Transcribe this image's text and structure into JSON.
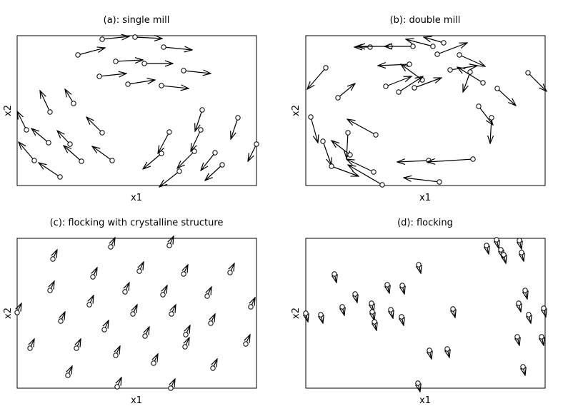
{
  "chart_data": [
    {
      "type": "vector-field",
      "title": "(a): single mill",
      "xlabel": "x1",
      "ylabel": "x2",
      "xlim": [
        0,
        335
      ],
      "ylim": [
        0,
        210
      ],
      "grid": false,
      "points": [
        {
          "x": 85,
          "y": 183,
          "dx": 38,
          "dy": 10
        },
        {
          "x": 119,
          "y": 205,
          "dx": 38,
          "dy": 4
        },
        {
          "x": 165,
          "y": 208,
          "dx": 38,
          "dy": -2
        },
        {
          "x": 205,
          "y": 194,
          "dx": 40,
          "dy": -4
        },
        {
          "x": 138,
          "y": 174,
          "dx": 38,
          "dy": 2
        },
        {
          "x": 178,
          "y": 171,
          "dx": 40,
          "dy": 0
        },
        {
          "x": 115,
          "y": 153,
          "dx": 38,
          "dy": 4
        },
        {
          "x": 233,
          "y": 161,
          "dx": 38,
          "dy": -4
        },
        {
          "x": 155,
          "y": 142,
          "dx": 38,
          "dy": 6
        },
        {
          "x": 202,
          "y": 140,
          "dx": 38,
          "dy": -4
        },
        {
          "x": 46,
          "y": 103,
          "dx": -14,
          "dy": 30
        },
        {
          "x": 79,
          "y": 115,
          "dx": -12,
          "dy": 20
        },
        {
          "x": 119,
          "y": 74,
          "dx": -22,
          "dy": 22
        },
        {
          "x": 13,
          "y": 78,
          "dx": -13,
          "dy": 26
        },
        {
          "x": 44,
          "y": 60,
          "dx": -24,
          "dy": 20
        },
        {
          "x": 74,
          "y": 58,
          "dx": -18,
          "dy": 19
        },
        {
          "x": 24,
          "y": 35,
          "dx": -22,
          "dy": 26
        },
        {
          "x": 90,
          "y": 34,
          "dx": -25,
          "dy": 22
        },
        {
          "x": 60,
          "y": 12,
          "dx": -30,
          "dy": 20
        },
        {
          "x": 133,
          "y": 35,
          "dx": -28,
          "dy": 20
        },
        {
          "x": 259,
          "y": 106,
          "dx": -10,
          "dy": -30
        },
        {
          "x": 309,
          "y": 95,
          "dx": -10,
          "dy": -30
        },
        {
          "x": 257,
          "y": 78,
          "dx": -14,
          "dy": -30
        },
        {
          "x": 213,
          "y": 75,
          "dx": -16,
          "dy": -30
        },
        {
          "x": 277,
          "y": 46,
          "dx": -20,
          "dy": -25
        },
        {
          "x": 248,
          "y": 48,
          "dx": -24,
          "dy": -24
        },
        {
          "x": 202,
          "y": 45,
          "dx": -26,
          "dy": -22
        },
        {
          "x": 335,
          "y": 58,
          "dx": -12,
          "dy": -24
        },
        {
          "x": 287,
          "y": 29,
          "dx": -24,
          "dy": -22
        },
        {
          "x": 227,
          "y": 20,
          "dx": -28,
          "dy": -22
        }
      ]
    },
    {
      "type": "vector-field",
      "title": "(b): double mill",
      "xlabel": "x1",
      "ylabel": "x2",
      "xlim": [
        0,
        335
      ],
      "ylim": [
        0,
        210
      ],
      "grid": false,
      "points": [
        {
          "x": 90,
          "y": 194,
          "dx": -22,
          "dy": 0
        },
        {
          "x": 118,
          "y": 195,
          "dx": -46,
          "dy": 0
        },
        {
          "x": 178,
          "y": 195,
          "dx": -38,
          "dy": 10
        },
        {
          "x": 193,
          "y": 200,
          "dx": -28,
          "dy": 8
        },
        {
          "x": 150,
          "y": 195,
          "dx": -40,
          "dy": 0
        },
        {
          "x": 184,
          "y": 184,
          "dx": 42,
          "dy": 16
        },
        {
          "x": 145,
          "y": 170,
          "dx": -44,
          "dy": -2
        },
        {
          "x": 215,
          "y": 183,
          "dx": 36,
          "dy": -16
        },
        {
          "x": 202,
          "y": 162,
          "dx": 38,
          "dy": 6
        },
        {
          "x": 163,
          "y": 148,
          "dx": -30,
          "dy": 22
        },
        {
          "x": 112,
          "y": 139,
          "dx": 36,
          "dy": 14
        },
        {
          "x": 152,
          "y": 137,
          "dx": 38,
          "dy": 14
        },
        {
          "x": 130,
          "y": 131,
          "dx": 34,
          "dy": 22
        },
        {
          "x": 248,
          "y": 144,
          "dx": -36,
          "dy": 22
        },
        {
          "x": 230,
          "y": 159,
          "dx": -10,
          "dy": -28
        },
        {
          "x": 268,
          "y": 136,
          "dx": 26,
          "dy": -24
        },
        {
          "x": 311,
          "y": 158,
          "dx": 26,
          "dy": -26
        },
        {
          "x": 28,
          "y": 165,
          "dx": -26,
          "dy": -30
        },
        {
          "x": 45,
          "y": 123,
          "dx": 24,
          "dy": 20
        },
        {
          "x": 242,
          "y": 111,
          "dx": 20,
          "dy": -26
        },
        {
          "x": 260,
          "y": 95,
          "dx": -2,
          "dy": -36
        },
        {
          "x": 7,
          "y": 96,
          "dx": 10,
          "dy": -36
        },
        {
          "x": 98,
          "y": 71,
          "dx": -40,
          "dy": 22
        },
        {
          "x": 59,
          "y": 74,
          "dx": -2,
          "dy": -36
        },
        {
          "x": 24,
          "y": 62,
          "dx": 12,
          "dy": -34
        },
        {
          "x": 62,
          "y": 43,
          "dx": -26,
          "dy": 20
        },
        {
          "x": 36,
          "y": 27,
          "dx": 38,
          "dy": -14
        },
        {
          "x": 95,
          "y": 19,
          "dx": -38,
          "dy": 18
        },
        {
          "x": 107,
          "y": 1,
          "dx": -48,
          "dy": 28
        },
        {
          "x": 187,
          "y": 5,
          "dx": -50,
          "dy": 6
        },
        {
          "x": 172,
          "y": 35,
          "dx": -44,
          "dy": -2
        },
        {
          "x": 234,
          "y": 37,
          "dx": -64,
          "dy": -4
        }
      ]
    },
    {
      "type": "vector-field",
      "title": "(c): flocking with crystalline structure",
      "xlabel": "x1",
      "ylabel": "x2",
      "xlim": [
        0,
        335
      ],
      "ylim": [
        0,
        210
      ],
      "grid": false,
      "points": [
        {
          "x": 50,
          "y": 181,
          "dx": 6,
          "dy": 13
        },
        {
          "x": 131,
          "y": 198,
          "dx": 6,
          "dy": 13
        },
        {
          "x": 213,
          "y": 200,
          "dx": 6,
          "dy": 13
        },
        {
          "x": 106,
          "y": 156,
          "dx": 6,
          "dy": 13
        },
        {
          "x": 171,
          "y": 164,
          "dx": 6,
          "dy": 13
        },
        {
          "x": 233,
          "y": 160,
          "dx": 6,
          "dy": 13
        },
        {
          "x": 298,
          "y": 162,
          "dx": 6,
          "dy": 13
        },
        {
          "x": 46,
          "y": 137,
          "dx": 6,
          "dy": 13
        },
        {
          "x": 151,
          "y": 135,
          "dx": 6,
          "dy": 13
        },
        {
          "x": 204,
          "y": 131,
          "dx": 6,
          "dy": 13
        },
        {
          "x": 266,
          "y": 129,
          "dx": 6,
          "dy": 13
        },
        {
          "x": 101,
          "y": 117,
          "dx": 6,
          "dy": 13
        },
        {
          "x": 162,
          "y": 104,
          "dx": 6,
          "dy": 13
        },
        {
          "x": 216,
          "y": 104,
          "dx": 6,
          "dy": 13
        },
        {
          "x": 327,
          "y": 114,
          "dx": 6,
          "dy": 13
        },
        {
          "x": 0,
          "y": 106,
          "dx": 6,
          "dy": 13
        },
        {
          "x": 61,
          "y": 94,
          "dx": 6,
          "dy": 13
        },
        {
          "x": 122,
          "y": 82,
          "dx": 6,
          "dy": 13
        },
        {
          "x": 271,
          "y": 91,
          "dx": 6,
          "dy": 13
        },
        {
          "x": 179,
          "y": 73,
          "dx": 6,
          "dy": 13
        },
        {
          "x": 236,
          "y": 75,
          "dx": 6,
          "dy": 13
        },
        {
          "x": 18,
          "y": 56,
          "dx": 6,
          "dy": 13
        },
        {
          "x": 83,
          "y": 56,
          "dx": 6,
          "dy": 13
        },
        {
          "x": 320,
          "y": 62,
          "dx": 6,
          "dy": 13
        },
        {
          "x": 138,
          "y": 46,
          "dx": 6,
          "dy": 13
        },
        {
          "x": 191,
          "y": 35,
          "dx": 6,
          "dy": 13
        },
        {
          "x": 235,
          "y": 58,
          "dx": 6,
          "dy": 13
        },
        {
          "x": 274,
          "y": 28,
          "dx": 6,
          "dy": 13
        },
        {
          "x": 71,
          "y": 18,
          "dx": 6,
          "dy": 13
        },
        {
          "x": 140,
          "y": 2,
          "dx": 6,
          "dy": 13
        },
        {
          "x": 215,
          "y": 0,
          "dx": 6,
          "dy": 13
        }
      ]
    },
    {
      "type": "vector-field",
      "title": "(d): flocking",
      "xlabel": "x1",
      "ylabel": "x2",
      "xlim": [
        0,
        335
      ],
      "ylim": [
        0,
        210
      ],
      "grid": false,
      "points": [
        {
          "x": 253,
          "y": 200,
          "dx": 3,
          "dy": -12
        },
        {
          "x": 267,
          "y": 208,
          "dx": 3,
          "dy": -12
        },
        {
          "x": 299,
          "y": 207,
          "dx": 3,
          "dy": -12
        },
        {
          "x": 273,
          "y": 194,
          "dx": 3,
          "dy": -12
        },
        {
          "x": 277,
          "y": 187,
          "dx": 3,
          "dy": -12
        },
        {
          "x": 302,
          "y": 190,
          "dx": 3,
          "dy": -12
        },
        {
          "x": 158,
          "y": 173,
          "dx": 3,
          "dy": -12
        },
        {
          "x": 40,
          "y": 160,
          "dx": 3,
          "dy": -12
        },
        {
          "x": 114,
          "y": 145,
          "dx": 3,
          "dy": -12
        },
        {
          "x": 135,
          "y": 144,
          "dx": 3,
          "dy": -12
        },
        {
          "x": 69,
          "y": 132,
          "dx": 3,
          "dy": -12
        },
        {
          "x": 307,
          "y": 137,
          "dx": 3,
          "dy": -12
        },
        {
          "x": 92,
          "y": 119,
          "dx": 3,
          "dy": -12
        },
        {
          "x": 51,
          "y": 114,
          "dx": 3,
          "dy": -12
        },
        {
          "x": 93,
          "y": 107,
          "dx": 3,
          "dy": -12
        },
        {
          "x": 119,
          "y": 110,
          "dx": 3,
          "dy": -12
        },
        {
          "x": 206,
          "y": 111,
          "dx": 3,
          "dy": -12
        },
        {
          "x": 298,
          "y": 119,
          "dx": 3,
          "dy": -12
        },
        {
          "x": 333,
          "y": 112,
          "dx": 3,
          "dy": -12
        },
        {
          "x": 0,
          "y": 105,
          "dx": 3,
          "dy": -12
        },
        {
          "x": 21,
          "y": 103,
          "dx": 3,
          "dy": -12
        },
        {
          "x": 134,
          "y": 100,
          "dx": 3,
          "dy": -12
        },
        {
          "x": 312,
          "y": 103,
          "dx": 3,
          "dy": -12
        },
        {
          "x": 96,
          "y": 93,
          "dx": 3,
          "dy": -12
        },
        {
          "x": 296,
          "y": 72,
          "dx": 3,
          "dy": -12
        },
        {
          "x": 330,
          "y": 72,
          "dx": 3,
          "dy": -12
        },
        {
          "x": 173,
          "y": 53,
          "dx": 3,
          "dy": -12
        },
        {
          "x": 198,
          "y": 55,
          "dx": 3,
          "dy": -12
        },
        {
          "x": 304,
          "y": 30,
          "dx": 3,
          "dy": -12
        },
        {
          "x": 157,
          "y": 7,
          "dx": 3,
          "dy": -12
        }
      ]
    }
  ]
}
